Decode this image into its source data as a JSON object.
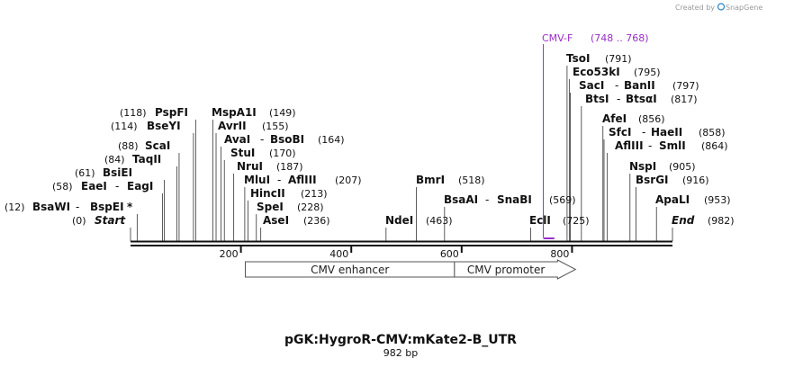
{
  "credit": "Created by",
  "brand": "SnapGene",
  "plasmid": {
    "name": "pGK:HygroR-CMV:mKate2-B_UTR",
    "length_label": "982 bp",
    "length": 982
  },
  "axis_ticks": [
    {
      "value": 200,
      "label": "200"
    },
    {
      "value": 400,
      "label": "400"
    },
    {
      "value": 600,
      "label": "600"
    },
    {
      "value": 800,
      "label": "800"
    }
  ],
  "features": [
    {
      "name": "CMV enhancer",
      "start": 208,
      "end": 587,
      "type": "box"
    },
    {
      "name": "CMV promoter",
      "start": 587,
      "end": 790,
      "type": "arrow"
    }
  ],
  "primer": {
    "name": "CMV-F",
    "range": "(748 .. 768)",
    "start": 748,
    "end": 768
  },
  "sites": [
    {
      "name": "Start",
      "pos": 0,
      "pos_label": "(0)",
      "style": "italic"
    },
    {
      "name": "BsaWI",
      "name2": "BspEI",
      "star": "*",
      "pos": 12,
      "pos_label": "(12)"
    },
    {
      "name": "EaeI",
      "name2": "EagI",
      "pos": 58,
      "pos_label": "(58)"
    },
    {
      "name": "BsiEI",
      "pos": 61,
      "pos_label": "(61)"
    },
    {
      "name": "TaqII",
      "pos": 84,
      "pos_label": "(84)"
    },
    {
      "name": "ScaI",
      "pos": 88,
      "pos_label": "(88)"
    },
    {
      "name": "BseYI",
      "pos": 114,
      "pos_label": "(114)"
    },
    {
      "name": "PspFI",
      "pos": 118,
      "pos_label": "(118)"
    },
    {
      "name": "MspA1I",
      "pos": 149,
      "pos_label": "(149)"
    },
    {
      "name": "AvrII",
      "pos": 155,
      "pos_label": "(155)"
    },
    {
      "name": "AvaI",
      "name2": "BsoBI",
      "pos": 164,
      "pos_label": "(164)"
    },
    {
      "name": "StuI",
      "pos": 170,
      "pos_label": "(170)"
    },
    {
      "name": "NruI",
      "pos": 187,
      "pos_label": "(187)"
    },
    {
      "name": "MluI",
      "name2": "AflIII",
      "pos": 207,
      "pos_label": "(207)"
    },
    {
      "name": "HincII",
      "pos": 213,
      "pos_label": "(213)"
    },
    {
      "name": "SpeI",
      "pos": 228,
      "pos_label": "(228)"
    },
    {
      "name": "AseI",
      "pos": 236,
      "pos_label": "(236)"
    },
    {
      "name": "NdeI",
      "pos": 463,
      "pos_label": "(463)"
    },
    {
      "name": "BmrI",
      "pos": 518,
      "pos_label": "(518)"
    },
    {
      "name": "BsaAI",
      "name2": "SnaBI",
      "pos": 569,
      "pos_label": "(569)"
    },
    {
      "name": "EclI",
      "pos": 725,
      "pos_label": "(725)"
    },
    {
      "name": "TsoI",
      "pos": 791,
      "pos_label": "(791)"
    },
    {
      "name": "Eco53kI",
      "pos": 795,
      "pos_label": "(795)"
    },
    {
      "name": "SacI",
      "name2": "BanII",
      "pos": 797,
      "pos_label": "(797)"
    },
    {
      "name": "BtsI",
      "name2": "BtsαI",
      "pos": 817,
      "pos_label": "(817)"
    },
    {
      "name": "AfeI",
      "pos": 856,
      "pos_label": "(856)"
    },
    {
      "name": "SfcI",
      "name2": "HaeII",
      "pos": 858,
      "pos_label": "(858)"
    },
    {
      "name": "AflIII",
      "name2": "SmlI",
      "pos": 864,
      "pos_label": "(864)"
    },
    {
      "name": "NspI",
      "pos": 905,
      "pos_label": "(905)"
    },
    {
      "name": "BsrGI",
      "pos": 916,
      "pos_label": "(916)"
    },
    {
      "name": "ApaLI",
      "pos": 953,
      "pos_label": "(953)"
    },
    {
      "name": "End",
      "pos": 982,
      "pos_label": "(982)",
      "style": "italic"
    }
  ],
  "colors": {
    "backbone": "#111111",
    "primer": "#9a2ec8",
    "feature_outline": "#555555",
    "snapgene_logo": "#2a86c8"
  }
}
